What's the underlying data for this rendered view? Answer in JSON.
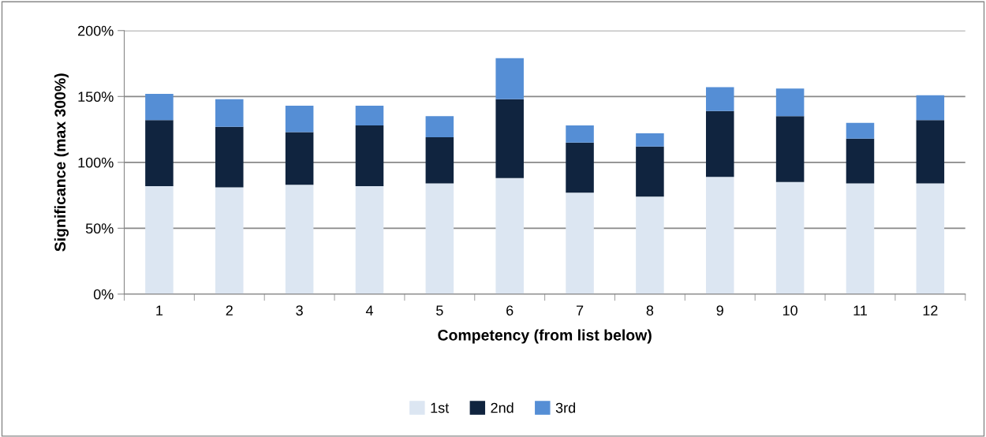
{
  "chart_data": {
    "type": "bar",
    "stacked": true,
    "xlabel": "Competency (from list below)",
    "ylabel": "Significance (max 300%)",
    "categories": [
      "1",
      "2",
      "3",
      "4",
      "5",
      "6",
      "7",
      "8",
      "9",
      "10",
      "11",
      "12"
    ],
    "series": [
      {
        "name": "1st",
        "color": "#dce6f2",
        "values": [
          82,
          81,
          83,
          82,
          84,
          88,
          77,
          74,
          89,
          85,
          84,
          84
        ]
      },
      {
        "name": "2nd",
        "color": "#10243f",
        "values": [
          50,
          46,
          40,
          46,
          35,
          60,
          38,
          38,
          50,
          50,
          34,
          48
        ]
      },
      {
        "name": "3rd",
        "color": "#558ed5",
        "values": [
          20,
          21,
          20,
          15,
          16,
          31,
          13,
          10,
          18,
          21,
          12,
          19
        ]
      }
    ],
    "ylim": [
      0,
      200
    ],
    "yticks": [
      {
        "value": 0,
        "label": "0%"
      },
      {
        "value": 50,
        "label": "50%"
      },
      {
        "value": 100,
        "label": "100%"
      },
      {
        "value": 150,
        "label": "150%"
      },
      {
        "value": 200,
        "label": "200%"
      }
    ],
    "grid": "y",
    "legend": "bottom"
  }
}
